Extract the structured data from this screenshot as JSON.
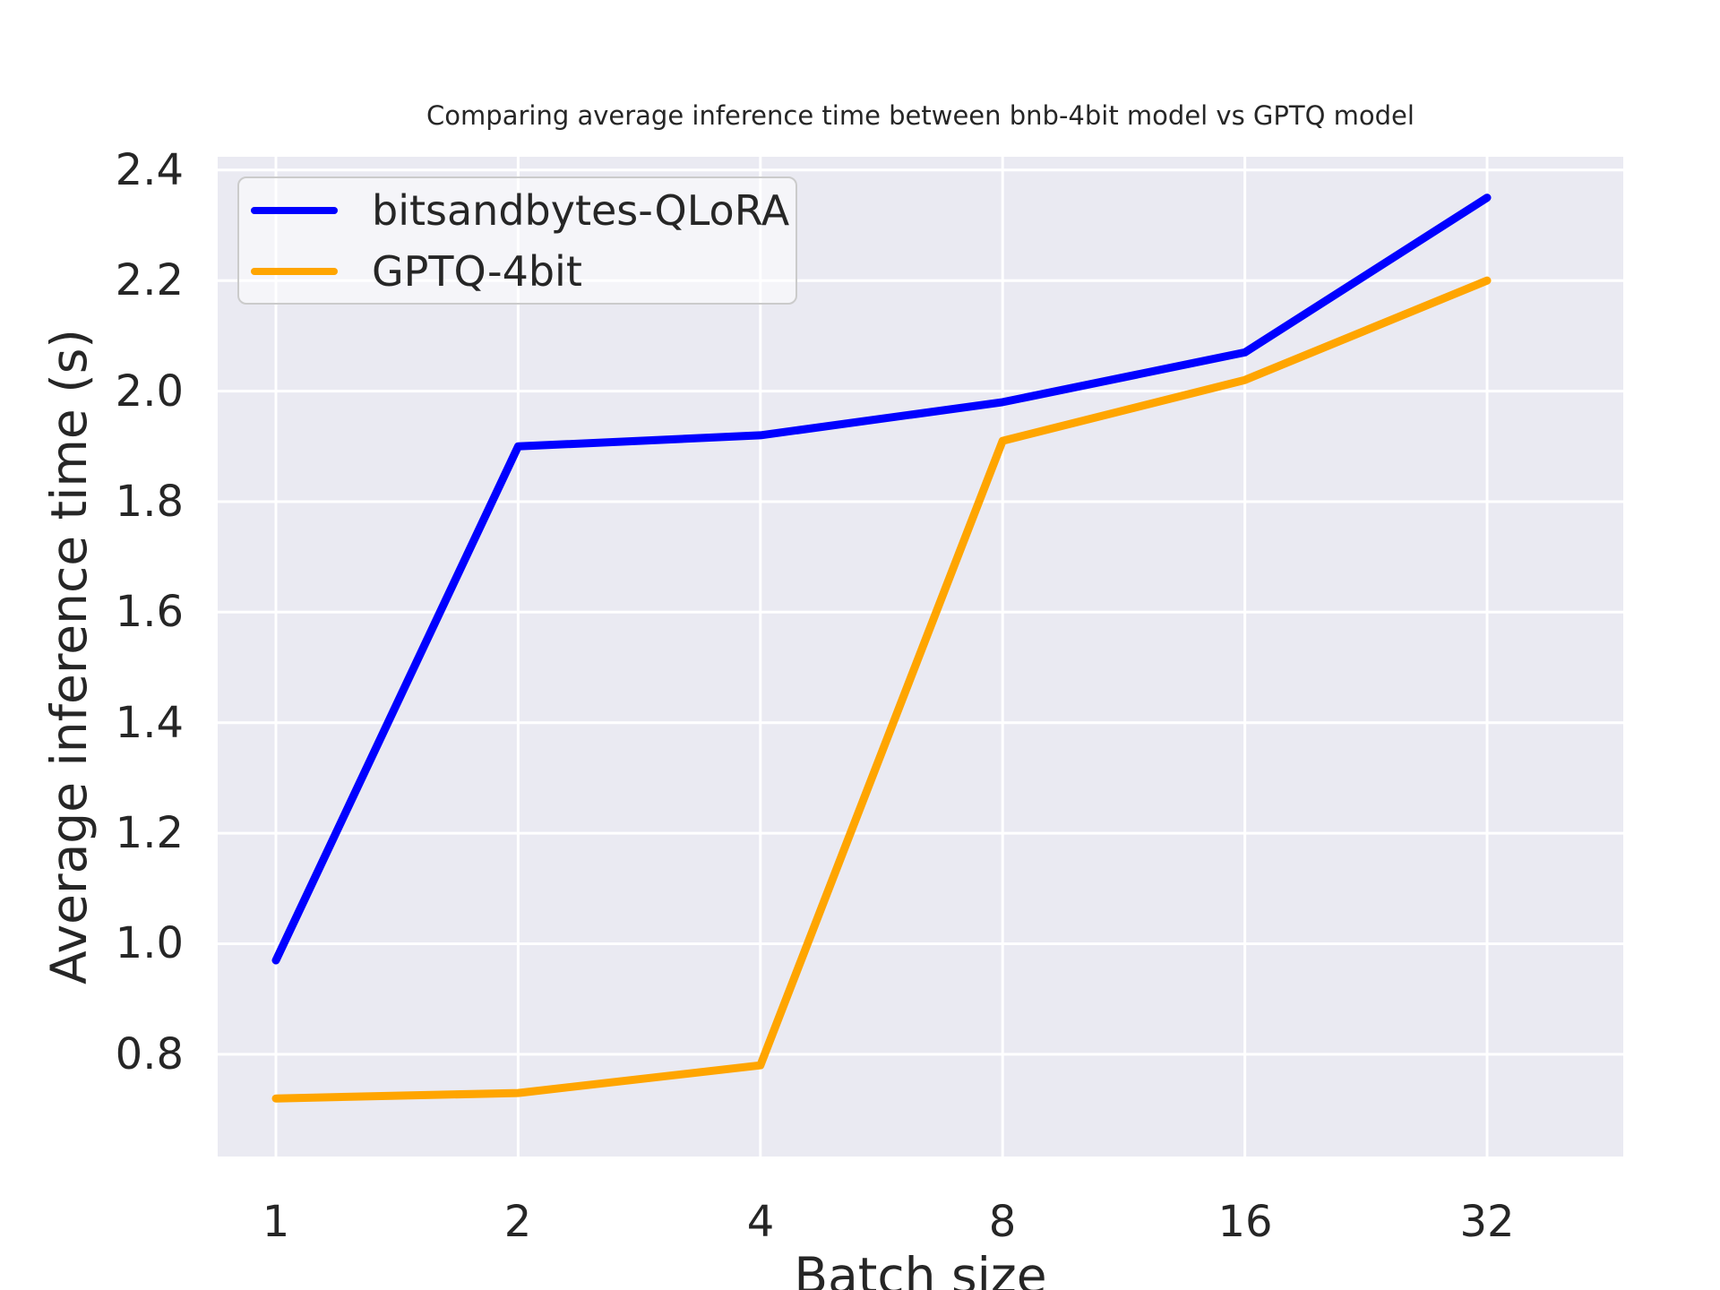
{
  "chart_data": {
    "type": "line",
    "title": "Comparing average inference time between bnb-4bit model vs GPTQ model",
    "xlabel": "Batch size",
    "ylabel": "Average inference time (s)",
    "x_scale": "log2",
    "categories": [
      1,
      2,
      4,
      8,
      16,
      32
    ],
    "series": [
      {
        "name": "bitsandbytes-QLoRA",
        "color": "#0000ff",
        "values": [
          0.97,
          1.9,
          1.92,
          1.98,
          2.07,
          2.35
        ]
      },
      {
        "name": "GPTQ-4bit",
        "color": "#ffa500",
        "values": [
          0.72,
          0.73,
          0.78,
          1.91,
          2.02,
          2.2
        ]
      }
    ],
    "yticks": [
      0.8,
      1.0,
      1.2,
      1.4,
      1.6,
      1.8,
      2.0,
      2.2,
      2.4
    ],
    "ylim": [
      0.615,
      2.424
    ],
    "grid": true,
    "legend_position": "upper-left",
    "style": {
      "plot_background": "#eaeaf2",
      "grid_color": "#ffffff",
      "text_color": "#262626",
      "page_background": "#ffffff",
      "legend_border": "#cbcbcb"
    }
  }
}
